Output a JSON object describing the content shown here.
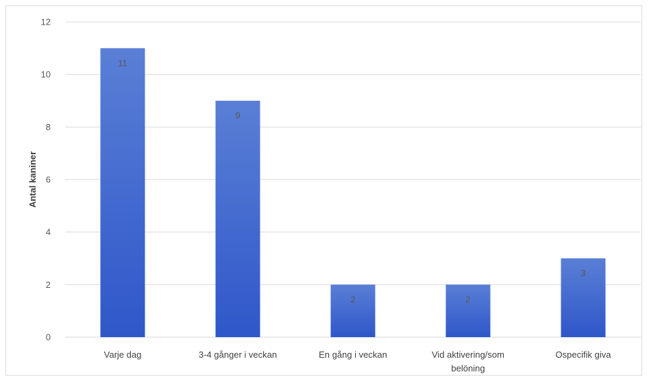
{
  "chart_data": {
    "type": "bar",
    "title": "",
    "xlabel": "",
    "ylabel": "Antal kaniner",
    "categories": [
      "Varje dag",
      "3-4 gånger i veckan",
      "En gång i veckan",
      "Vid aktivering/som belöning",
      "Ospecifik giva"
    ],
    "category_lines": [
      [
        "Varje dag"
      ],
      [
        "3-4 gånger i veckan"
      ],
      [
        "En gång i veckan"
      ],
      [
        "Vid aktivering/som",
        "belöning"
      ],
      [
        "Ospecifik giva"
      ]
    ],
    "values": [
      11,
      9,
      2,
      2,
      3
    ],
    "ylim": [
      0,
      12
    ],
    "yticks": [
      0,
      2,
      4,
      6,
      8,
      10,
      12
    ],
    "grid": true,
    "legend": "none",
    "colors": {
      "bar_top": "#5a7fd6",
      "bar_bottom": "#2f57c9"
    }
  }
}
